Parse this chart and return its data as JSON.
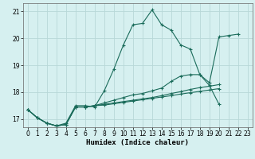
{
  "xlabel": "Humidex (Indice chaleur)",
  "bg_color": "#d6f0f0",
  "grid_color": "#b8d8d8",
  "line_color": "#1a6b5a",
  "xlim": [
    -0.5,
    23.5
  ],
  "ylim": [
    16.7,
    21.3
  ],
  "yticks": [
    17,
    18,
    19,
    20,
    21
  ],
  "xticks": [
    0,
    1,
    2,
    3,
    4,
    5,
    6,
    7,
    8,
    9,
    10,
    11,
    12,
    13,
    14,
    15,
    16,
    17,
    18,
    19,
    20,
    21,
    22,
    23
  ],
  "series": [
    [
      17.35,
      17.05,
      16.85,
      16.75,
      16.85,
      17.5,
      17.5,
      17.45,
      18.05,
      18.85,
      19.75,
      20.5,
      20.55,
      21.05,
      20.5,
      20.3,
      19.75,
      19.6,
      18.65,
      18.35,
      20.05,
      20.1,
      20.15,
      null
    ],
    [
      17.35,
      17.05,
      16.85,
      16.75,
      16.8,
      17.45,
      17.45,
      17.5,
      17.6,
      17.7,
      17.8,
      17.9,
      17.95,
      18.05,
      18.15,
      18.4,
      18.6,
      18.65,
      18.65,
      18.25,
      17.55,
      null,
      null,
      null
    ],
    [
      17.35,
      17.05,
      16.85,
      16.75,
      16.8,
      17.45,
      17.45,
      17.5,
      17.55,
      17.6,
      17.65,
      17.7,
      17.75,
      17.8,
      17.87,
      17.95,
      18.02,
      18.1,
      18.17,
      18.22,
      18.28,
      null,
      null,
      null
    ],
    [
      17.35,
      17.05,
      16.85,
      16.75,
      16.8,
      17.45,
      17.45,
      17.5,
      17.52,
      17.57,
      17.62,
      17.67,
      17.72,
      17.77,
      17.82,
      17.87,
      17.93,
      17.98,
      18.03,
      18.08,
      18.13,
      null,
      null,
      null
    ]
  ]
}
